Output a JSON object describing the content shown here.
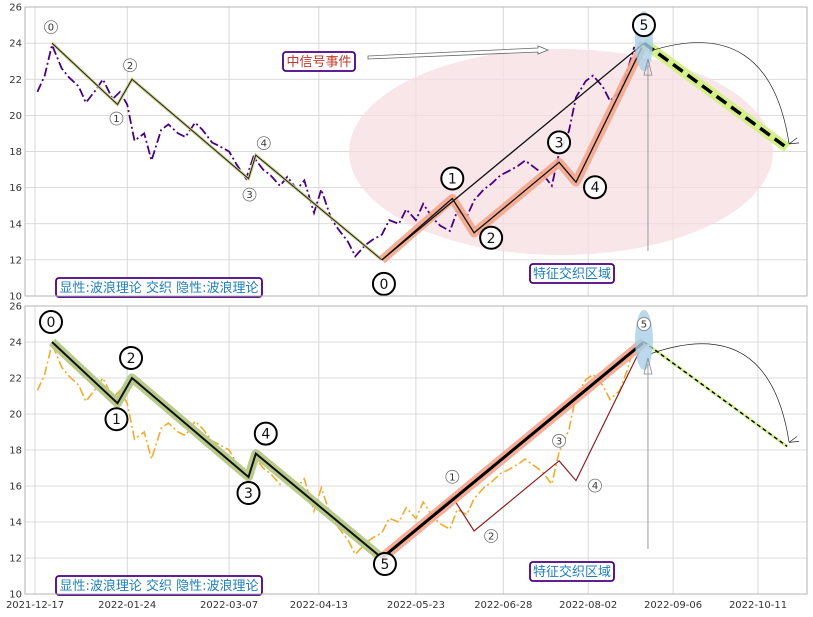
{
  "chart_data": [
    {
      "type": "line",
      "ylim": [
        10,
        26
      ],
      "yticks": [
        10,
        12,
        14,
        16,
        18,
        20,
        22,
        24,
        26
      ],
      "xticks": [
        "2021-12-17",
        "2022-01-24",
        "2022-03-07",
        "2022-04-13",
        "2022-05-23",
        "2022-06-28",
        "2022-08-02",
        "2022-09-06",
        "2022-10-11"
      ],
      "price_series": {
        "style": "dash-dot",
        "color": "#4b0082",
        "x": [
          "2021-12-18",
          "2021-12-21",
          "2021-12-24",
          "2021-12-28",
          "2021-12-31",
          "2022-01-04",
          "2022-01-07",
          "2022-01-11",
          "2022-01-14",
          "2022-01-18",
          "2022-01-21",
          "2022-01-24",
          "2022-01-27",
          "2022-01-31",
          "2022-02-03",
          "2022-02-07",
          "2022-02-10",
          "2022-02-14",
          "2022-02-17",
          "2022-02-21",
          "2022-02-24",
          "2022-02-28",
          "2022-03-03",
          "2022-03-07",
          "2022-03-10",
          "2022-03-14",
          "2022-03-17",
          "2022-03-21",
          "2022-03-24",
          "2022-03-28",
          "2022-03-31",
          "2022-04-04",
          "2022-04-07",
          "2022-04-11",
          "2022-04-14",
          "2022-04-18",
          "2022-04-21",
          "2022-04-25",
          "2022-04-28",
          "2022-05-02",
          "2022-05-05",
          "2022-05-09",
          "2022-05-12",
          "2022-05-16",
          "2022-05-19",
          "2022-05-23",
          "2022-05-26",
          "2022-05-30",
          "2022-06-02",
          "2022-06-06",
          "2022-06-09",
          "2022-06-13",
          "2022-06-16",
          "2022-06-20",
          "2022-06-23",
          "2022-06-27",
          "2022-06-30",
          "2022-07-04",
          "2022-07-07",
          "2022-07-11",
          "2022-07-14",
          "2022-07-18",
          "2022-07-21",
          "2022-07-25",
          "2022-07-28",
          "2022-08-01",
          "2022-08-04",
          "2022-08-08",
          "2022-08-11",
          "2022-08-15",
          "2022-08-18",
          "2022-08-21"
        ],
        "y": [
          21.3,
          22.2,
          23.9,
          22.6,
          22.1,
          21.6,
          20.7,
          21.4,
          22.0,
          20.9,
          21.3,
          20.6,
          18.6,
          19.0,
          17.5,
          19.2,
          19.5,
          19.0,
          18.8,
          19.6,
          19.2,
          18.5,
          18.3,
          18.0,
          17.3,
          16.5,
          17.7,
          17.0,
          16.7,
          16.1,
          16.6,
          15.9,
          16.4,
          14.6,
          15.9,
          14.3,
          13.7,
          13.0,
          12.2,
          12.8,
          13.1,
          13.4,
          14.2,
          14.0,
          14.8,
          14.2,
          15.1,
          14.3,
          13.9,
          13.6,
          14.7,
          14.4,
          15.3,
          15.9,
          16.2,
          16.7,
          16.9,
          17.2,
          17.5,
          17.1,
          16.8,
          16.1,
          17.9,
          19.1,
          21.0,
          21.9,
          22.2,
          21.6,
          20.8,
          21.3,
          22.4,
          23.8
        ]
      },
      "wave_points": [
        {
          "label": "0",
          "x": "2021-12-24",
          "y": 24.0
        },
        {
          "label": "1",
          "x": "2022-01-20",
          "y": 20.6
        },
        {
          "label": "2",
          "x": "2022-01-26",
          "y": 22.0
        },
        {
          "label": "3",
          "x": "2022-03-15",
          "y": 16.5
        },
        {
          "label": "4",
          "x": "2022-03-18",
          "y": 17.8
        },
        {
          "label": "0",
          "x": "2022-05-09",
          "y": 12.0
        },
        {
          "label": "1",
          "x": "2022-06-07",
          "y": 15.4
        },
        {
          "label": "2",
          "x": "2022-06-16",
          "y": 13.5
        },
        {
          "label": "3",
          "x": "2022-07-21",
          "y": 17.4
        },
        {
          "label": "4",
          "x": "2022-07-28",
          "y": 16.3
        },
        {
          "label": "5",
          "x": "2022-08-25",
          "y": 24.0
        }
      ],
      "forecast": {
        "from": {
          "x": "2022-08-25",
          "y": 24.0
        },
        "to": {
          "x": "2022-10-23",
          "y": 18.2
        }
      },
      "labels": {
        "signal_event": "中信号事件",
        "feature_zone": "特征交织区域",
        "legend": "显性:波浪理论 交织 隐性:波浪理论"
      }
    },
    {
      "type": "line",
      "ylim": [
        10,
        26
      ],
      "yticks": [
        10,
        12,
        14,
        16,
        18,
        20,
        22,
        24,
        26
      ],
      "xticks": [
        "2021-12-17",
        "2022-01-24",
        "2022-03-07",
        "2022-04-13",
        "2022-05-23",
        "2022-06-28",
        "2022-08-02",
        "2022-09-06",
        "2022-10-11"
      ],
      "price_series": {
        "style": "dash-dot",
        "color": "#f0ad2c",
        "same_as_panel": 1
      },
      "wave_points": [
        {
          "label": "0",
          "x": "2021-12-24",
          "y": 24.0
        },
        {
          "label": "1",
          "x": "2022-01-20",
          "y": 20.6
        },
        {
          "label": "2",
          "x": "2022-01-26",
          "y": 22.0
        },
        {
          "label": "3",
          "x": "2022-03-15",
          "y": 16.5
        },
        {
          "label": "4",
          "x": "2022-03-18",
          "y": 17.8
        },
        {
          "label": "5",
          "x": "2022-05-09",
          "y": 12.0
        },
        {
          "label": "1",
          "x": "2022-06-07",
          "y": 15.4
        },
        {
          "label": "2",
          "x": "2022-06-16",
          "y": 13.5
        },
        {
          "label": "3",
          "x": "2022-07-21",
          "y": 17.4
        },
        {
          "label": "4",
          "x": "2022-07-28",
          "y": 16.3
        },
        {
          "label": "5",
          "x": "2022-08-25",
          "y": 24.0
        }
      ],
      "forecast": {
        "from": {
          "x": "2022-08-25",
          "y": 24.0
        },
        "to": {
          "x": "2022-10-23",
          "y": 18.2
        }
      },
      "labels": {
        "feature_zone": "特征交织区域",
        "legend": "显性:波浪理论 交织 隐性:波浪理论"
      }
    }
  ],
  "colors": {
    "axes_bg": "#ffffff",
    "grid": "#cfcfcf",
    "panel_border": "#b5b5b5",
    "box_border": "#4b0082",
    "signal_text": "#c0392b",
    "zone_text": "#1e7fb8",
    "highlight_red": "#f4a58c",
    "highlight_green": "#b9cb8c",
    "highlight_blue": "#a9cfe8",
    "ellipse": "#f6dde1",
    "forecast_glow": "#d5f08a"
  }
}
